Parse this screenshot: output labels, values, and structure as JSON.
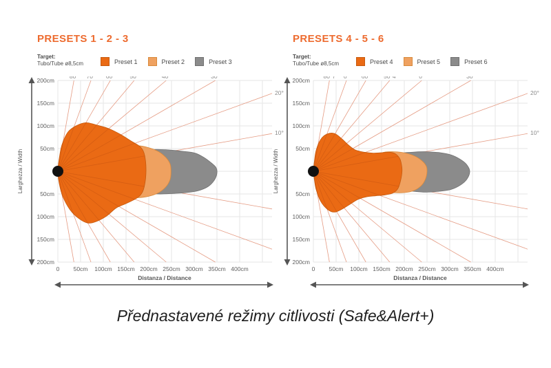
{
  "page": {
    "caption": "Přednastavené režimy citlivosti (Safe&Alert+)",
    "background": "#ffffff",
    "accent_orange": "#ED6B2F"
  },
  "charts": [
    {
      "title": "PRESETS 1 - 2 - 3",
      "target_label": "Target:",
      "target_value": "Tubo/Tube ø8,5cm",
      "legend": [
        {
          "label": "Preset 1",
          "color": "#EA6A14",
          "border": "#C65A0E"
        },
        {
          "label": "Preset 2",
          "color": "#EFA160",
          "border": "#D88A3C"
        },
        {
          "label": "Preset 3",
          "color": "#8B8B8B",
          "border": "#707070"
        }
      ],
      "chart_data": {
        "type": "area",
        "units": "cm",
        "x_axis": {
          "label": "Distanza / Distance",
          "ticks": [
            "0",
            "50cm",
            "100cm",
            "150cm",
            "200cm",
            "250cm",
            "300cm",
            "350cm",
            "400cm"
          ],
          "tick_cm": [
            0,
            50,
            100,
            150,
            200,
            250,
            300,
            350,
            400
          ],
          "range_cm": [
            0,
            470
          ]
        },
        "y_axis": {
          "label": "Larghezza / Width",
          "ticks": [
            "200cm",
            "150cm",
            "100cm",
            "50cm",
            "50cm",
            "100cm",
            "150cm",
            "200cm"
          ],
          "tick_cm": [
            200,
            150,
            100,
            50,
            -50,
            -100,
            -150,
            -200
          ],
          "range_cm": [
            -200,
            200
          ]
        },
        "angle_rays_deg": [
          80,
          70,
          60,
          50,
          40,
          30,
          20,
          10
        ],
        "angle_labels_top": [
          "80°",
          "70°",
          "60°",
          "50°",
          "40°",
          "30°"
        ],
        "angle_labels_right": [
          "20°",
          "10°"
        ],
        "origin_marker": "black-dot",
        "grid": true,
        "series": [
          {
            "name": "Preset 3",
            "color": "#8B8B8B",
            "stroke": "#707070",
            "max_distance_cm": 350,
            "max_halfwidth_cm": 50,
            "outline_cm": [
              [
                186,
                44
              ],
              [
                215,
                48
              ],
              [
                245,
                47
              ],
              [
                275,
                44
              ],
              [
                302,
                40
              ],
              [
                322,
                30
              ],
              [
                338,
                18
              ],
              [
                348,
                8
              ],
              [
                350,
                -4
              ],
              [
                344,
                -20
              ],
              [
                330,
                -34
              ],
              [
                308,
                -43
              ],
              [
                282,
                -47
              ],
              [
                252,
                -49
              ],
              [
                220,
                -50
              ],
              [
                190,
                -46
              ],
              [
                182,
                -24
              ],
              [
                180,
                0
              ],
              [
                182,
                24
              ]
            ]
          },
          {
            "name": "Preset 2",
            "color": "#EFA160",
            "stroke": "#D88A3C",
            "max_distance_cm": 250,
            "max_halfwidth_cm": 58,
            "outline_cm": [
              [
                148,
                48
              ],
              [
                175,
                56
              ],
              [
                200,
                52
              ],
              [
                222,
                43
              ],
              [
                238,
                30
              ],
              [
                247,
                16
              ],
              [
                249,
                0
              ],
              [
                247,
                -18
              ],
              [
                238,
                -34
              ],
              [
                222,
                -47
              ],
              [
                200,
                -55
              ],
              [
                175,
                -58
              ],
              [
                148,
                -52
              ],
              [
                141,
                -28
              ],
              [
                139,
                0
              ],
              [
                141,
                28
              ]
            ]
          },
          {
            "name": "Preset 1",
            "color": "#EA6A14",
            "stroke": "#C65A0E",
            "max_distance_cm": 195,
            "max_halfwidth_cm": 115,
            "fan_visible": true,
            "outline_cm": [
              [
                0,
                0
              ],
              [
                3,
                28
              ],
              [
                9,
                58
              ],
              [
                22,
                86
              ],
              [
                40,
                100
              ],
              [
                62,
                107
              ],
              [
                88,
                101
              ],
              [
                112,
                94
              ],
              [
                138,
                81
              ],
              [
                162,
                66
              ],
              [
                180,
                55
              ],
              [
                189,
                42
              ],
              [
                193,
                22
              ],
              [
                194,
                0
              ],
              [
                192,
                -24
              ],
              [
                187,
                -44
              ],
              [
                178,
                -56
              ],
              [
                165,
                -64
              ],
              [
                148,
                -72
              ],
              [
                128,
                -81
              ],
              [
                108,
                -98
              ],
              [
                86,
                -110
              ],
              [
                66,
                -114
              ],
              [
                46,
                -104
              ],
              [
                27,
                -85
              ],
              [
                11,
                -56
              ],
              [
                3,
                -27
              ]
            ]
          }
        ]
      }
    },
    {
      "title": "PRESETS 4 - 5 - 6",
      "target_label": "Target:",
      "target_value": "Tubo/Tube ø8,5cm",
      "legend": [
        {
          "label": "Preset 4",
          "color": "#EA6A14",
          "border": "#C65A0E"
        },
        {
          "label": "Preset 5",
          "color": "#EFA160",
          "border": "#D88A3C"
        },
        {
          "label": "Preset 6",
          "color": "#8B8B8B",
          "border": "#707070"
        }
      ],
      "chart_data": {
        "type": "area",
        "units": "cm",
        "x_axis": {
          "label": "Distanza / Distance",
          "ticks": [
            "0",
            "50cm",
            "100cm",
            "150cm",
            "200cm",
            "250cm",
            "300cm",
            "350cm",
            "400cm"
          ],
          "tick_cm": [
            0,
            50,
            100,
            150,
            200,
            250,
            300,
            350,
            400
          ],
          "range_cm": [
            0,
            470
          ]
        },
        "y_axis": {
          "label": "Larghezza / Width",
          "ticks": [
            "200cm",
            "150cm",
            "100cm",
            "50cm",
            "50cm",
            "100cm",
            "150cm",
            "200cm"
          ],
          "tick_cm": [
            200,
            150,
            100,
            50,
            -50,
            -100,
            -150,
            -200
          ],
          "range_cm": [
            -200,
            200
          ]
        },
        "angle_rays_deg": [
          80,
          70,
          60,
          50,
          40,
          30,
          20,
          10
        ],
        "angle_labels_top": [
          "80°7",
          "0°",
          "60°",
          "50°4",
          "0°",
          "30°"
        ],
        "angle_labels_right": [
          "20°",
          "10°"
        ],
        "origin_marker": "black-dot",
        "grid": true,
        "series": [
          {
            "name": "Preset 6",
            "color": "#8B8B8B",
            "stroke": "#707070",
            "max_distance_cm": 345,
            "max_halfwidth_cm": 46,
            "outline_cm": [
              [
                188,
                38
              ],
              [
                218,
                42
              ],
              [
                248,
                43
              ],
              [
                278,
                41
              ],
              [
                303,
                36
              ],
              [
                322,
                27
              ],
              [
                337,
                15
              ],
              [
                344,
                0
              ],
              [
                338,
                -17
              ],
              [
                324,
                -30
              ],
              [
                303,
                -40
              ],
              [
                278,
                -44
              ],
              [
                248,
                -46
              ],
              [
                218,
                -44
              ],
              [
                190,
                -40
              ],
              [
                182,
                -20
              ],
              [
                180,
                0
              ],
              [
                182,
                20
              ]
            ]
          },
          {
            "name": "Preset 5",
            "color": "#EFA160",
            "stroke": "#D88A3C",
            "max_distance_cm": 250,
            "max_halfwidth_cm": 47,
            "outline_cm": [
              [
                150,
                40
              ],
              [
                178,
                43
              ],
              [
                203,
                40
              ],
              [
                224,
                33
              ],
              [
                239,
                23
              ],
              [
                248,
                12
              ],
              [
                250,
                0
              ],
              [
                247,
                -16
              ],
              [
                238,
                -31
              ],
              [
                222,
                -42
              ],
              [
                200,
                -47
              ],
              [
                175,
                -47
              ],
              [
                150,
                -44
              ],
              [
                142,
                -22
              ],
              [
                140,
                0
              ],
              [
                142,
                20
              ]
            ]
          },
          {
            "name": "Preset 4",
            "color": "#EA6A14",
            "stroke": "#C65A0E",
            "max_distance_cm": 195,
            "max_halfwidth_cm": 90,
            "fan_visible": true,
            "outline_cm": [
              [
                0,
                0
              ],
              [
                2,
                20
              ],
              [
                6,
                46
              ],
              [
                16,
                70
              ],
              [
                30,
                82
              ],
              [
                47,
                83
              ],
              [
                63,
                71
              ],
              [
                77,
                58
              ],
              [
                92,
                47
              ],
              [
                112,
                42
              ],
              [
                132,
                40
              ],
              [
                152,
                41
              ],
              [
                168,
                42
              ],
              [
                181,
                38
              ],
              [
                190,
                28
              ],
              [
                194,
                14
              ],
              [
                195,
                0
              ],
              [
                192,
                -20
              ],
              [
                186,
                -38
              ],
              [
                175,
                -48
              ],
              [
                158,
                -52
              ],
              [
                138,
                -54
              ],
              [
                118,
                -56
              ],
              [
                98,
                -62
              ],
              [
                80,
                -73
              ],
              [
                62,
                -84
              ],
              [
                46,
                -90
              ],
              [
                31,
                -84
              ],
              [
                16,
                -66
              ],
              [
                6,
                -40
              ],
              [
                2,
                -17
              ]
            ]
          }
        ]
      }
    }
  ],
  "style_colors": {
    "ray": "#E59B83",
    "grid": "#E5E5E5",
    "tick_text": "#606060",
    "angle_text": "#8A8A8A",
    "axis_arrow": "#555555",
    "origin_dot": "#111111"
  }
}
